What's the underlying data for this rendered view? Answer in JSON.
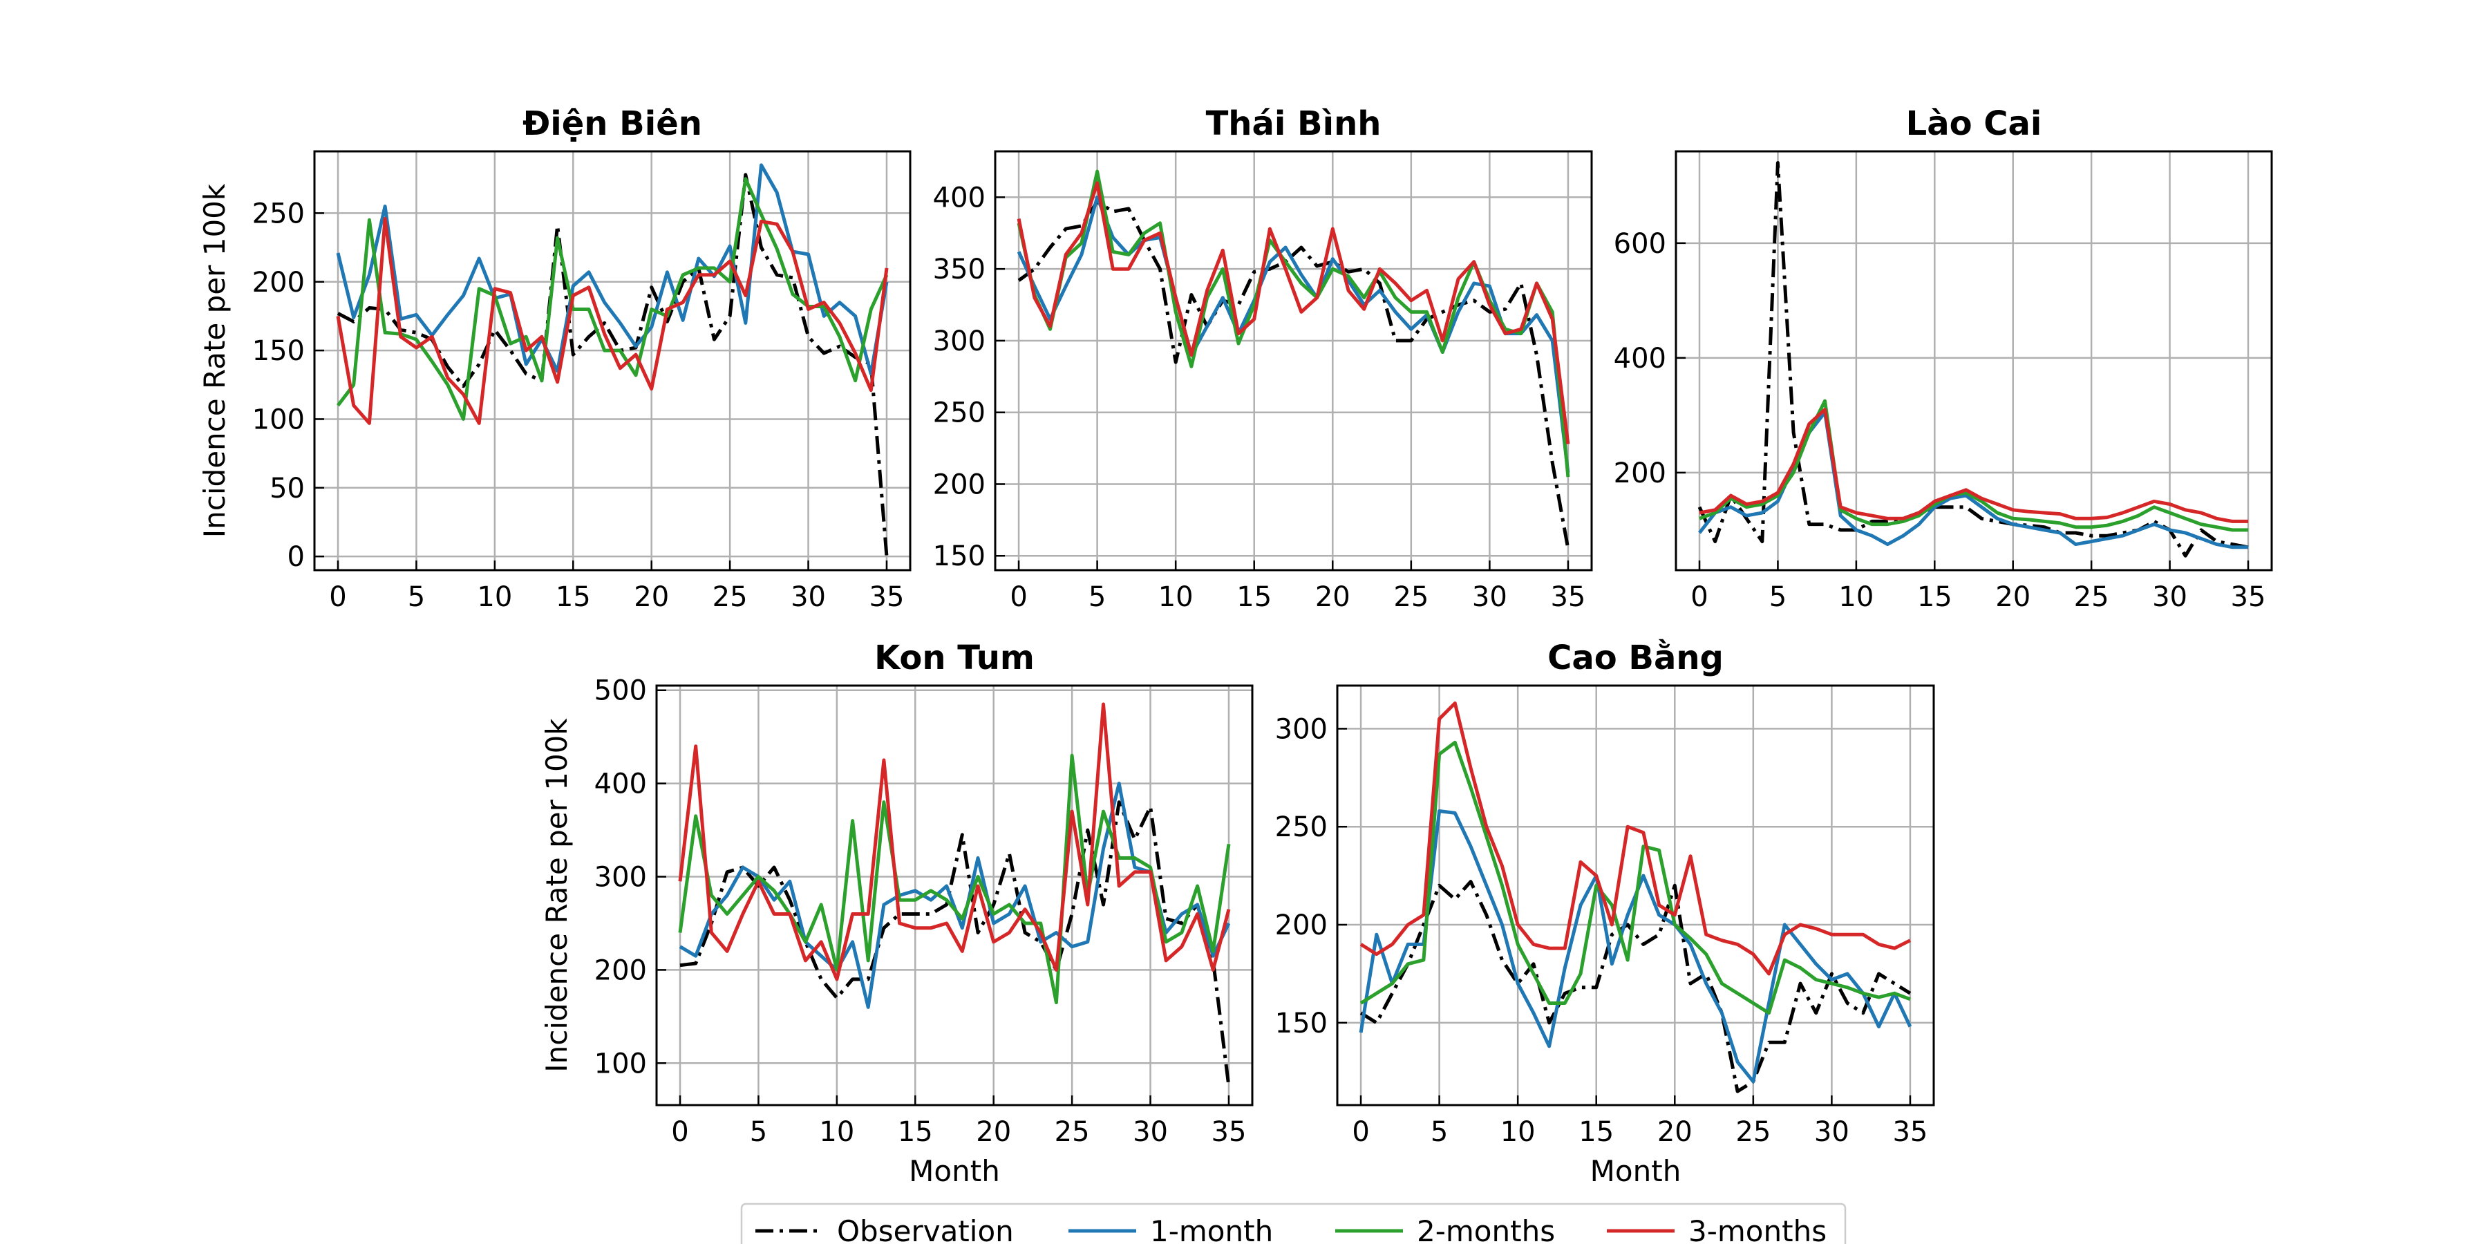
{
  "chart_data": [
    {
      "type": "line",
      "title": "Điện Biên",
      "xlabel": "",
      "ylabel": "Incidence Rate per 100k",
      "xlim": [
        -1.5,
        36.5
      ],
      "ylim": [
        -10,
        295
      ],
      "xticks": [
        0,
        5,
        10,
        15,
        20,
        25,
        30,
        35
      ],
      "yticks": [
        0,
        50,
        100,
        150,
        200,
        250
      ],
      "grid": true,
      "x": [
        0,
        1,
        2,
        3,
        4,
        5,
        6,
        7,
        8,
        9,
        10,
        11,
        12,
        13,
        14,
        15,
        16,
        17,
        18,
        19,
        20,
        21,
        22,
        23,
        24,
        25,
        26,
        27,
        28,
        29,
        30,
        31,
        32,
        33,
        34,
        35
      ],
      "series": [
        {
          "name": "Observation",
          "values": [
            177,
            171,
            181,
            180,
            165,
            163,
            158,
            138,
            124,
            140,
            165,
            150,
            133,
            128,
            241,
            147,
            160,
            170,
            150,
            152,
            196,
            171,
            200,
            210,
            158,
            175,
            278,
            225,
            205,
            203,
            160,
            148,
            153,
            145,
            140,
            0
          ]
        },
        {
          "name": "1-month",
          "values": [
            221,
            174,
            205,
            255,
            173,
            176,
            161,
            176,
            190,
            217,
            188,
            191,
            140,
            158,
            135,
            197,
            207,
            185,
            170,
            153,
            167,
            207,
            172,
            217,
            204,
            226,
            170,
            285,
            265,
            222,
            220,
            175,
            185,
            175,
            133,
            200
          ]
        },
        {
          "name": "2-months",
          "values": [
            110,
            125,
            245,
            163,
            162,
            158,
            142,
            125,
            100,
            195,
            190,
            155,
            160,
            128,
            232,
            180,
            180,
            150,
            150,
            132,
            180,
            175,
            205,
            210,
            210,
            200,
            275,
            249,
            224,
            191,
            182,
            182,
            160,
            128,
            180,
            205
          ]
        },
        {
          "name": "3-months",
          "values": [
            175,
            110,
            97,
            246,
            160,
            152,
            160,
            130,
            118,
            97,
            195,
            192,
            150,
            160,
            127,
            190,
            196,
            162,
            137,
            147,
            122,
            180,
            185,
            205,
            205,
            215,
            190,
            244,
            242,
            222,
            180,
            185,
            170,
            148,
            121,
            210
          ]
        }
      ]
    },
    {
      "type": "line",
      "title": "Thái Bình",
      "xlabel": "",
      "ylabel": "",
      "xlim": [
        -1.5,
        36.5
      ],
      "ylim": [
        140,
        432
      ],
      "xticks": [
        0,
        5,
        10,
        15,
        20,
        25,
        30,
        35
      ],
      "yticks": [
        150,
        200,
        250,
        300,
        350,
        400
      ],
      "grid": true,
      "x": [
        0,
        1,
        2,
        3,
        4,
        5,
        6,
        7,
        8,
        9,
        10,
        11,
        12,
        13,
        14,
        15,
        16,
        17,
        18,
        19,
        20,
        21,
        22,
        23,
        24,
        25,
        26,
        27,
        28,
        29,
        30,
        31,
        32,
        33,
        34,
        35
      ],
      "series": [
        {
          "name": "Observation",
          "values": [
            342,
            350,
            365,
            378,
            380,
            397,
            390,
            392,
            370,
            350,
            285,
            332,
            310,
            328,
            325,
            348,
            350,
            355,
            365,
            352,
            355,
            348,
            350,
            340,
            300,
            300,
            315,
            320,
            325,
            328,
            320,
            322,
            340,
            290,
            215,
            155
          ]
        },
        {
          "name": "1-month",
          "values": [
            362,
            338,
            315,
            338,
            360,
            400,
            372,
            360,
            370,
            372,
            330,
            290,
            310,
            330,
            305,
            328,
            355,
            365,
            346,
            330,
            357,
            342,
            325,
            335,
            320,
            308,
            318,
            292,
            320,
            340,
            338,
            305,
            305,
            318,
            300,
            208
          ]
        },
        {
          "name": "2-months",
          "values": [
            382,
            332,
            308,
            358,
            368,
            418,
            362,
            360,
            375,
            382,
            320,
            282,
            330,
            350,
            298,
            325,
            370,
            355,
            340,
            330,
            350,
            345,
            330,
            348,
            330,
            320,
            320,
            292,
            330,
            355,
            328,
            308,
            305,
            340,
            320,
            205
          ]
        },
        {
          "name": "3-months",
          "values": [
            385,
            330,
            310,
            360,
            375,
            410,
            350,
            350,
            370,
            375,
            330,
            290,
            335,
            363,
            305,
            315,
            378,
            350,
            320,
            330,
            378,
            335,
            322,
            350,
            340,
            328,
            335,
            300,
            343,
            355,
            325,
            305,
            308,
            340,
            315,
            228
          ]
        }
      ]
    },
    {
      "type": "line",
      "title": "Lào Cai",
      "xlabel": "",
      "ylabel": "",
      "xlim": [
        -1.5,
        36.5
      ],
      "ylim": [
        30,
        760
      ],
      "xticks": [
        0,
        5,
        10,
        15,
        20,
        25,
        30,
        35
      ],
      "yticks": [
        200,
        400,
        600
      ],
      "grid": true,
      "x": [
        0,
        1,
        2,
        3,
        4,
        5,
        6,
        7,
        8,
        9,
        10,
        11,
        12,
        13,
        14,
        15,
        16,
        17,
        18,
        19,
        20,
        21,
        22,
        23,
        24,
        25,
        26,
        27,
        28,
        29,
        30,
        31,
        32,
        33,
        34,
        35
      ],
      "series": [
        {
          "name": "Observation",
          "values": [
            140,
            80,
            160,
            120,
            80,
            740,
            270,
            110,
            110,
            100,
            100,
            115,
            115,
            120,
            130,
            140,
            140,
            140,
            120,
            115,
            110,
            108,
            105,
            95,
            95,
            90,
            90,
            95,
            100,
            115,
            100,
            55,
            100,
            80,
            75,
            70
          ]
        },
        {
          "name": "1-month",
          "values": [
            95,
            130,
            140,
            125,
            130,
            150,
            210,
            270,
            305,
            125,
            100,
            90,
            75,
            90,
            110,
            140,
            155,
            160,
            140,
            120,
            110,
            105,
            100,
            95,
            75,
            80,
            85,
            90,
            100,
            110,
            100,
            95,
            85,
            75,
            70,
            70
          ]
        },
        {
          "name": "2-months",
          "values": [
            120,
            130,
            155,
            140,
            145,
            160,
            200,
            270,
            325,
            135,
            120,
            110,
            110,
            115,
            125,
            145,
            160,
            165,
            150,
            130,
            120,
            118,
            115,
            112,
            105,
            105,
            108,
            115,
            125,
            140,
            130,
            120,
            110,
            105,
            100,
            100
          ]
        },
        {
          "name": "3-months",
          "values": [
            130,
            135,
            160,
            145,
            150,
            165,
            215,
            285,
            310,
            140,
            130,
            125,
            120,
            120,
            130,
            150,
            160,
            170,
            155,
            145,
            135,
            132,
            130,
            128,
            120,
            120,
            122,
            130,
            140,
            150,
            145,
            135,
            130,
            120,
            115,
            115
          ]
        }
      ]
    },
    {
      "type": "line",
      "title": "Kon Tum",
      "xlabel": "Month",
      "ylabel": "Incidence Rate per 100k",
      "xlim": [
        -1.5,
        36.5
      ],
      "ylim": [
        55,
        505
      ],
      "xticks": [
        0,
        5,
        10,
        15,
        20,
        25,
        30,
        35
      ],
      "yticks": [
        100,
        200,
        300,
        400,
        500
      ],
      "grid": true,
      "x": [
        0,
        1,
        2,
        3,
        4,
        5,
        6,
        7,
        8,
        9,
        10,
        11,
        12,
        13,
        14,
        15,
        16,
        17,
        18,
        19,
        20,
        21,
        22,
        23,
        24,
        25,
        26,
        27,
        28,
        29,
        30,
        31,
        32,
        33,
        34,
        35
      ],
      "series": [
        {
          "name": "Observation",
          "values": [
            205,
            207,
            250,
            305,
            310,
            290,
            310,
            275,
            230,
            190,
            170,
            190,
            190,
            245,
            260,
            260,
            260,
            270,
            345,
            240,
            270,
            325,
            240,
            230,
            200,
            260,
            350,
            270,
            380,
            340,
            375,
            255,
            250,
            270,
            210,
            75
          ]
        },
        {
          "name": "1-month",
          "values": [
            225,
            215,
            260,
            280,
            310,
            300,
            275,
            295,
            230,
            215,
            200,
            230,
            160,
            270,
            280,
            285,
            275,
            290,
            245,
            320,
            250,
            260,
            290,
            230,
            240,
            225,
            230,
            330,
            400,
            310,
            305,
            240,
            260,
            270,
            215,
            250
          ]
        },
        {
          "name": "2-months",
          "values": [
            240,
            365,
            280,
            260,
            280,
            300,
            285,
            260,
            230,
            270,
            200,
            360,
            210,
            380,
            275,
            275,
            285,
            275,
            255,
            300,
            260,
            270,
            250,
            250,
            165,
            430,
            280,
            370,
            320,
            320,
            310,
            230,
            240,
            290,
            220,
            335
          ]
        },
        {
          "name": "3-months",
          "values": [
            295,
            440,
            240,
            220,
            260,
            295,
            260,
            260,
            210,
            230,
            190,
            260,
            260,
            425,
            250,
            245,
            245,
            250,
            220,
            290,
            230,
            240,
            265,
            240,
            200,
            370,
            270,
            485,
            290,
            305,
            305,
            210,
            225,
            260,
            200,
            265
          ]
        }
      ]
    },
    {
      "type": "line",
      "title": "Cao Bằng",
      "xlabel": "Month",
      "ylabel": "",
      "xlim": [
        -1.5,
        36.5
      ],
      "ylim": [
        108,
        322
      ],
      "xticks": [
        0,
        5,
        10,
        15,
        20,
        25,
        30,
        35
      ],
      "yticks": [
        150,
        200,
        250,
        300
      ],
      "grid": true,
      "x": [
        0,
        1,
        2,
        3,
        4,
        5,
        6,
        7,
        8,
        9,
        10,
        11,
        12,
        13,
        14,
        15,
        16,
        17,
        18,
        19,
        20,
        21,
        22,
        23,
        24,
        25,
        26,
        27,
        28,
        29,
        30,
        31,
        32,
        33,
        34,
        35
      ],
      "series": [
        {
          "name": "Observation",
          "values": [
            155,
            150,
            165,
            180,
            200,
            220,
            213,
            222,
            205,
            182,
            170,
            180,
            150,
            165,
            168,
            168,
            195,
            200,
            190,
            195,
            220,
            170,
            175,
            155,
            115,
            120,
            140,
            140,
            170,
            155,
            175,
            160,
            155,
            175,
            170,
            165
          ]
        },
        {
          "name": "1-month",
          "values": [
            145,
            195,
            170,
            190,
            190,
            258,
            257,
            240,
            220,
            200,
            170,
            155,
            138,
            178,
            210,
            225,
            180,
            205,
            225,
            205,
            200,
            190,
            170,
            155,
            130,
            120,
            160,
            200,
            190,
            180,
            172,
            175,
            165,
            148,
            165,
            148
          ]
        },
        {
          "name": "2-months",
          "values": [
            160,
            165,
            170,
            180,
            182,
            287,
            293,
            270,
            245,
            220,
            190,
            175,
            160,
            160,
            175,
            220,
            210,
            182,
            240,
            238,
            200,
            193,
            185,
            170,
            165,
            160,
            155,
            182,
            178,
            172,
            170,
            168,
            165,
            163,
            165,
            162
          ]
        },
        {
          "name": "3-months",
          "values": [
            190,
            185,
            190,
            200,
            205,
            305,
            313,
            280,
            250,
            230,
            200,
            190,
            188,
            188,
            232,
            225,
            200,
            250,
            247,
            210,
            205,
            235,
            195,
            192,
            190,
            185,
            175,
            195,
            200,
            198,
            195,
            195,
            195,
            190,
            188,
            192
          ]
        }
      ]
    }
  ],
  "legend": {
    "placement": "bottom-center",
    "entries": [
      {
        "name": "Observation",
        "color": "#000000",
        "dash": "dashdot"
      },
      {
        "name": "1-month",
        "color": "#1f77b4",
        "dash": "solid"
      },
      {
        "name": "2-months",
        "color": "#2ca02c",
        "dash": "solid"
      },
      {
        "name": "3-months",
        "color": "#d62728",
        "dash": "solid"
      }
    ]
  },
  "colors": {
    "Observation": "#000000",
    "1-month": "#1f77b4",
    "2-months": "#2ca02c",
    "3-months": "#d62728",
    "grid": "#b0b0b0"
  }
}
